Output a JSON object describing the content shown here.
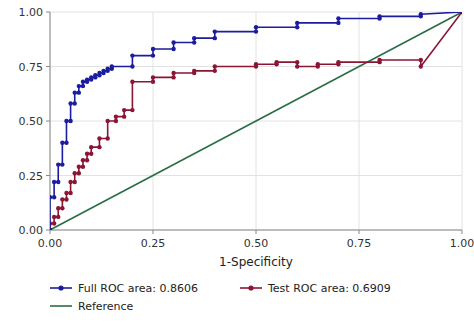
{
  "chart_data": {
    "type": "line",
    "x_label": "1-Specificity",
    "xlim": [
      0,
      1.0
    ],
    "ylim": [
      0,
      1.0
    ],
    "xticks": [
      {
        "value": 0.0,
        "label": "0.00"
      },
      {
        "value": 0.25,
        "label": "0.25"
      },
      {
        "value": 0.5,
        "label": "0.50"
      },
      {
        "value": 0.75,
        "label": "0.75"
      },
      {
        "value": 1.0,
        "label": "1.00"
      }
    ],
    "yticks": [
      {
        "value": 0.0,
        "label": "0.00"
      },
      {
        "value": 0.25,
        "label": "0.25"
      },
      {
        "value": 0.5,
        "label": "0.50"
      },
      {
        "value": 0.75,
        "label": "0.75"
      },
      {
        "value": 1.0,
        "label": "1.00"
      }
    ],
    "grid": true,
    "legend": "bottom",
    "series": [
      {
        "name": "Full ROC area: 0.8606",
        "color": "#1c1c9e",
        "marker": "circle",
        "x": [
          0.0,
          0.0,
          0.01,
          0.01,
          0.02,
          0.02,
          0.03,
          0.03,
          0.04,
          0.04,
          0.05,
          0.05,
          0.06,
          0.06,
          0.07,
          0.07,
          0.08,
          0.08,
          0.09,
          0.09,
          0.1,
          0.1,
          0.11,
          0.11,
          0.12,
          0.12,
          0.13,
          0.13,
          0.14,
          0.14,
          0.15,
          0.15,
          0.2,
          0.2,
          0.25,
          0.25,
          0.3,
          0.3,
          0.35,
          0.35,
          0.4,
          0.4,
          0.5,
          0.5,
          0.6,
          0.6,
          0.7,
          0.7,
          0.8,
          0.8,
          0.9,
          0.9,
          1.0
        ],
        "values": [
          0.0,
          0.15,
          0.15,
          0.22,
          0.22,
          0.3,
          0.3,
          0.4,
          0.4,
          0.5,
          0.5,
          0.58,
          0.58,
          0.63,
          0.63,
          0.66,
          0.66,
          0.68,
          0.68,
          0.69,
          0.69,
          0.7,
          0.7,
          0.71,
          0.71,
          0.72,
          0.72,
          0.73,
          0.73,
          0.74,
          0.74,
          0.75,
          0.75,
          0.8,
          0.8,
          0.83,
          0.83,
          0.86,
          0.86,
          0.88,
          0.88,
          0.91,
          0.91,
          0.93,
          0.93,
          0.95,
          0.95,
          0.97,
          0.97,
          0.98,
          0.98,
          0.99,
          1.0
        ]
      },
      {
        "name": "Test ROC area: 0.6909",
        "color": "#8b1535",
        "marker": "circle",
        "x": [
          0.0,
          0.0,
          0.01,
          0.01,
          0.02,
          0.02,
          0.03,
          0.03,
          0.04,
          0.04,
          0.05,
          0.05,
          0.06,
          0.06,
          0.07,
          0.07,
          0.08,
          0.08,
          0.09,
          0.09,
          0.1,
          0.1,
          0.12,
          0.12,
          0.14,
          0.14,
          0.16,
          0.16,
          0.18,
          0.18,
          0.2,
          0.2,
          0.25,
          0.25,
          0.3,
          0.3,
          0.35,
          0.35,
          0.4,
          0.4,
          0.5,
          0.5,
          0.55,
          0.55,
          0.6,
          0.6,
          0.65,
          0.65,
          0.7,
          0.7,
          0.8,
          0.8,
          0.9,
          0.9,
          1.0
        ],
        "values": [
          0.0,
          0.03,
          0.03,
          0.06,
          0.06,
          0.1,
          0.1,
          0.14,
          0.14,
          0.17,
          0.17,
          0.22,
          0.22,
          0.26,
          0.26,
          0.29,
          0.29,
          0.32,
          0.32,
          0.35,
          0.35,
          0.38,
          0.38,
          0.42,
          0.42,
          0.5,
          0.5,
          0.52,
          0.52,
          0.55,
          0.55,
          0.68,
          0.68,
          0.7,
          0.7,
          0.72,
          0.72,
          0.73,
          0.73,
          0.75,
          0.75,
          0.76,
          0.76,
          0.77,
          0.77,
          0.75,
          0.75,
          0.76,
          0.76,
          0.77,
          0.77,
          0.78,
          0.78,
          0.75,
          1.0
        ]
      },
      {
        "name": "Reference",
        "color": "#2a6e45",
        "x": [
          0,
          1
        ],
        "values": [
          0,
          1
        ]
      }
    ]
  }
}
